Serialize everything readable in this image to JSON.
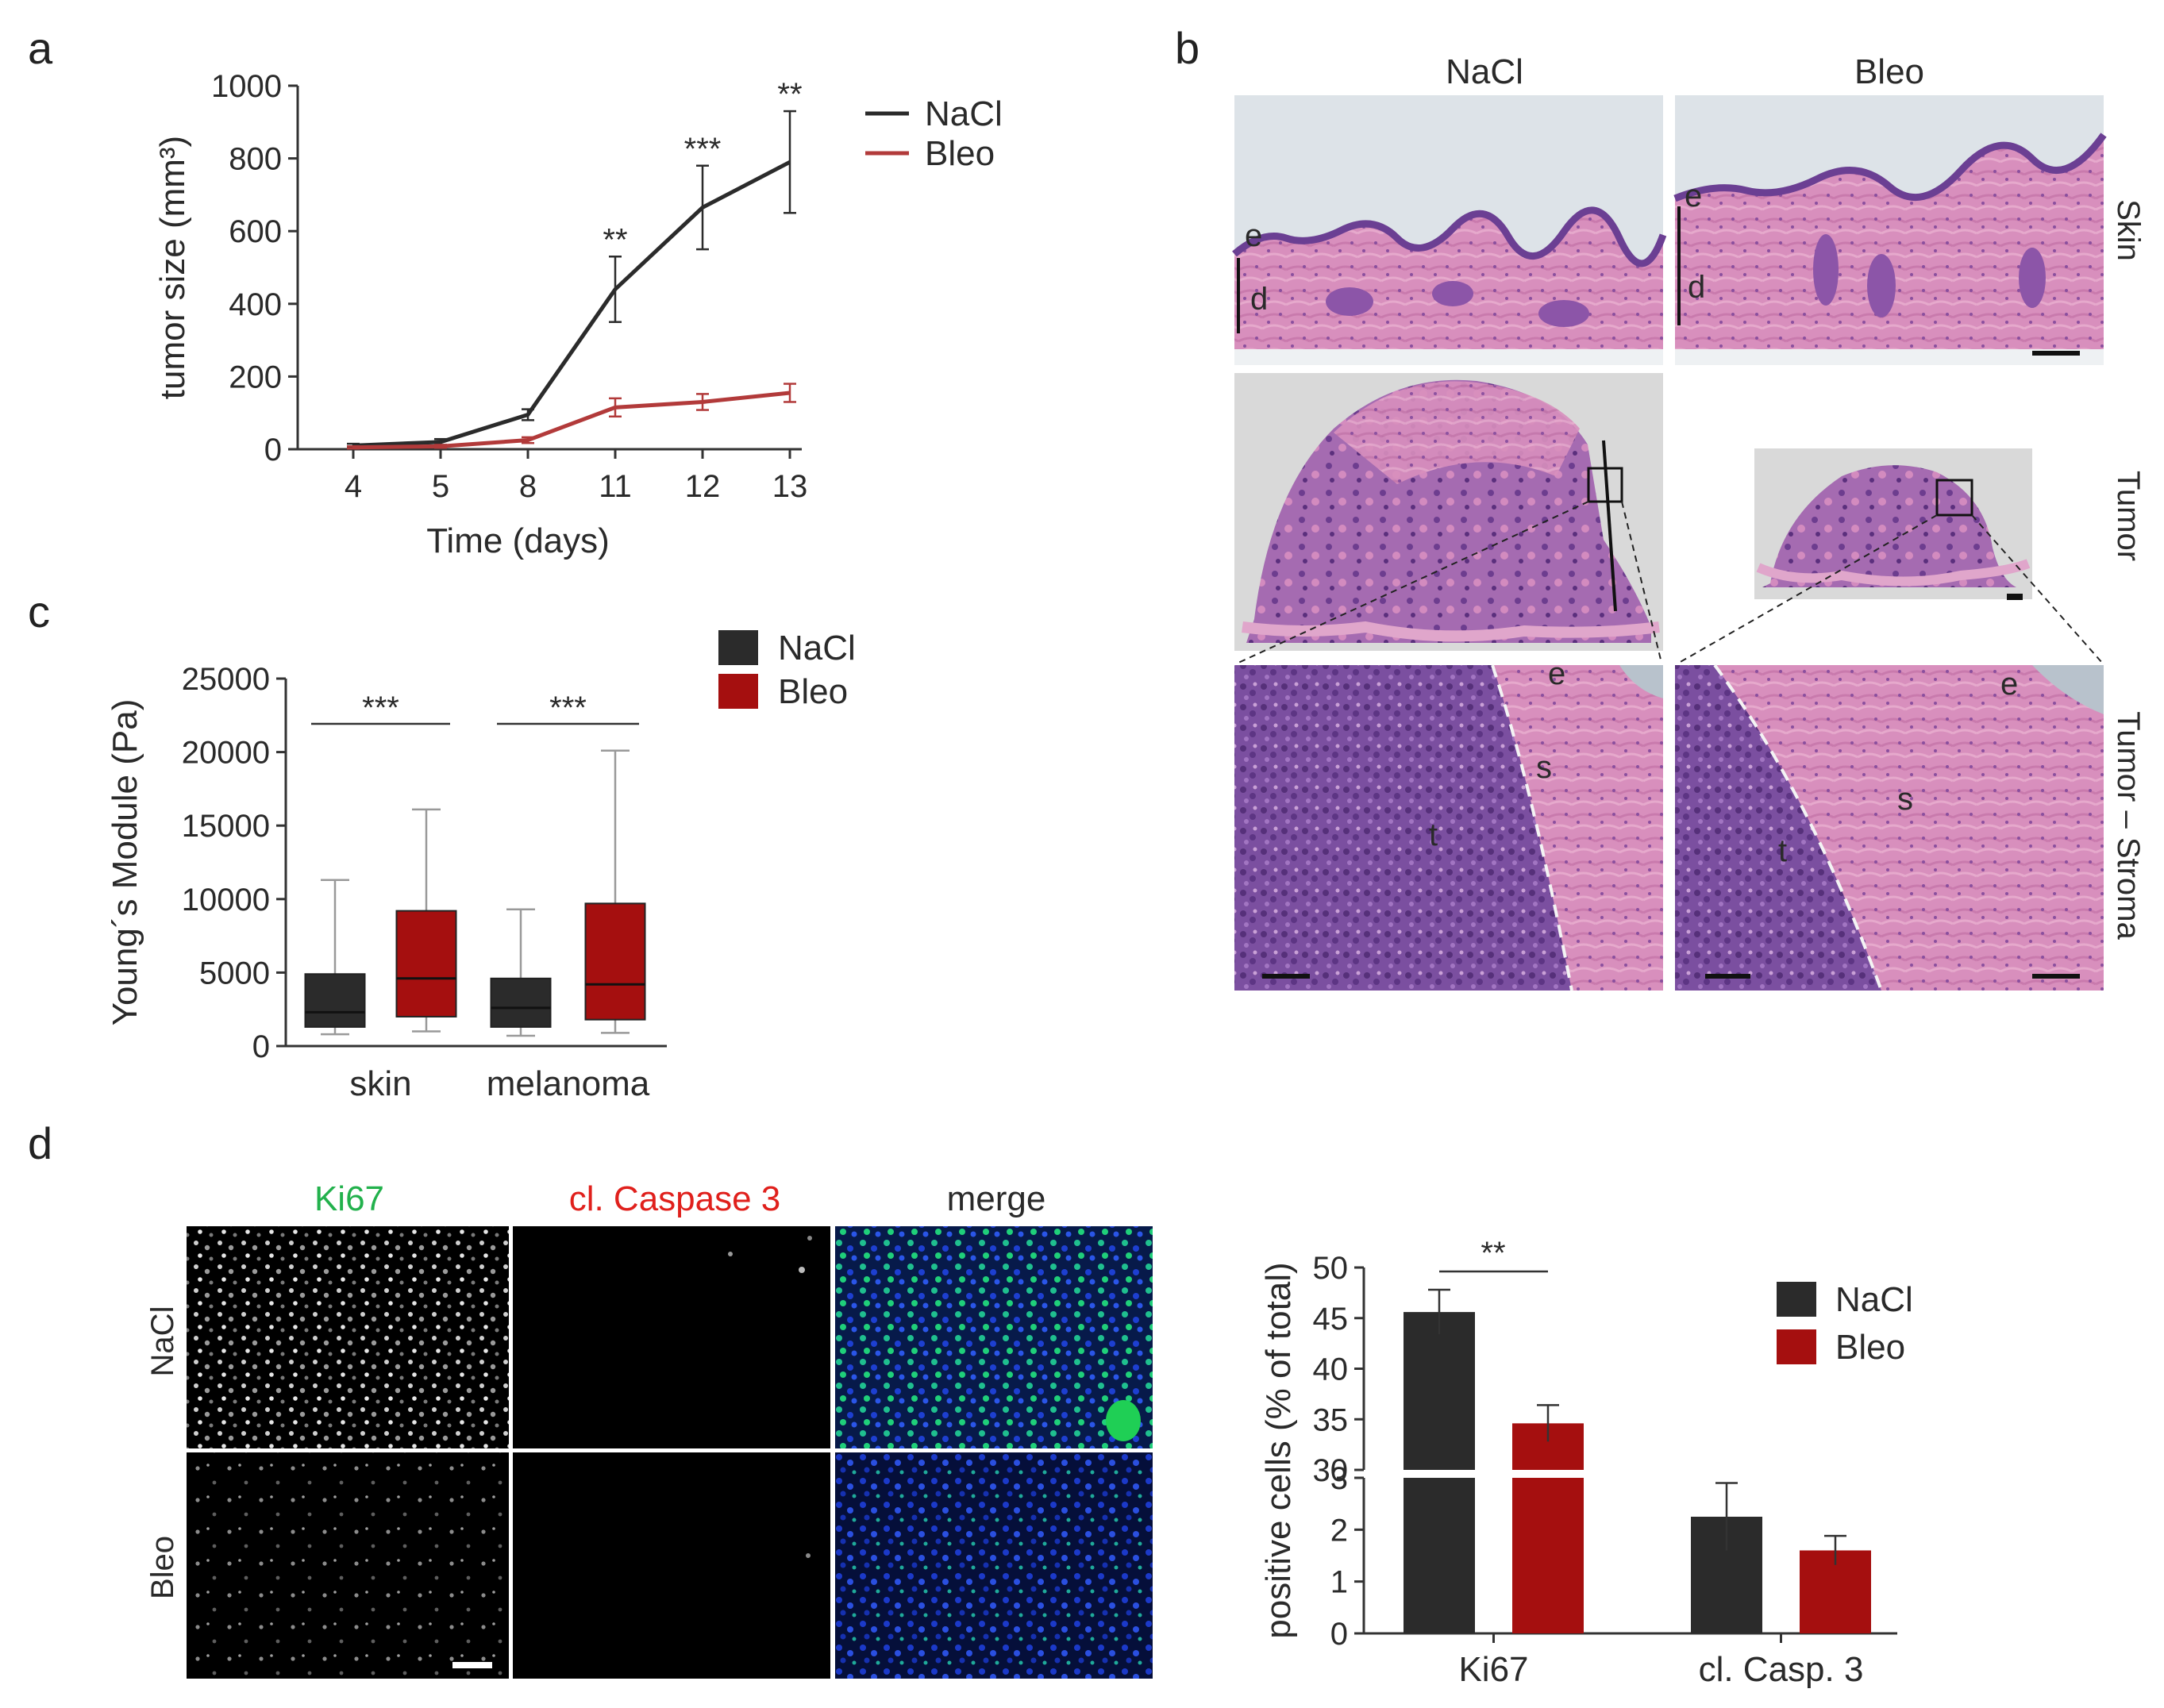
{
  "panels": {
    "a": "a",
    "b": "b",
    "c": "c",
    "d": "d"
  },
  "colors": {
    "nacl": "#2b2b2b",
    "bleo_line": "#b23a3a",
    "bleo_bar": "#a50f0f",
    "he_pink": "#d98ab8",
    "he_purple": "#6b3f93",
    "stain_bg": "#d9dfe4"
  },
  "panel_b": {
    "col_labels": [
      "NaCl",
      "Bleo"
    ],
    "row_labels": [
      "Skin",
      "Tumor",
      "Tumor – Stroma"
    ],
    "annotations": {
      "e": "e",
      "d": "d",
      "s": "s",
      "t": "t"
    }
  },
  "panel_d_images": {
    "col_labels": [
      "Ki67",
      "cl. Caspase 3",
      "merge"
    ],
    "col_label_colors": [
      "#22b14c",
      "#e0201c",
      "#222222"
    ],
    "row_labels": [
      "NaCl",
      "Bleo"
    ]
  },
  "chart_data": [
    {
      "id": "a",
      "type": "line",
      "xlabel": "Time (days)",
      "ylabel": "tumor size (mm³)",
      "categories": [
        "4",
        "5",
        "8",
        "11",
        "12",
        "13"
      ],
      "ylim": [
        0,
        1000
      ],
      "yticks": [
        "0",
        "200",
        "400",
        "600",
        "800",
        "1000"
      ],
      "series": [
        {
          "name": "NaCl",
          "color": "#2b2b2b",
          "values": [
            10,
            20,
            95,
            440,
            665,
            790
          ],
          "errors": [
            5,
            8,
            15,
            90,
            115,
            140
          ]
        },
        {
          "name": "Bleo",
          "color": "#b23a3a",
          "values": [
            5,
            8,
            25,
            115,
            130,
            155
          ],
          "errors": [
            3,
            4,
            8,
            25,
            22,
            25
          ]
        }
      ],
      "significance": [
        {
          "x": "11",
          "label": "**"
        },
        {
          "x": "12",
          "label": "***"
        },
        {
          "x": "13",
          "label": "**"
        }
      ],
      "legend": "top-right",
      "grid": false
    },
    {
      "id": "c",
      "type": "box",
      "ylabel": "Young´s Module (Pa)",
      "categories": [
        "skin",
        "melanoma"
      ],
      "ylim": [
        0,
        25000
      ],
      "yticks": [
        "0",
        "5000",
        "10000",
        "15000",
        "20000",
        "25000"
      ],
      "series": [
        {
          "name": "NaCl",
          "color": "#2b2b2b",
          "boxes": [
            {
              "min": 800,
              "q1": 1300,
              "median": 2300,
              "q3": 4900,
              "max": 11300
            },
            {
              "min": 700,
              "q1": 1300,
              "median": 2600,
              "q3": 4600,
              "max": 9300
            }
          ]
        },
        {
          "name": "Bleo",
          "color": "#a50f0f",
          "boxes": [
            {
              "min": 1000,
              "q1": 2000,
              "median": 4600,
              "q3": 9200,
              "max": 16100
            },
            {
              "min": 900,
              "q1": 1800,
              "median": 4200,
              "q3": 9700,
              "max": 20100
            }
          ]
        }
      ],
      "significance": [
        {
          "category": "skin",
          "label": "***"
        },
        {
          "category": "melanoma",
          "label": "***"
        }
      ],
      "legend": "top-right",
      "grid": false
    },
    {
      "id": "d",
      "type": "bar",
      "ylabel": "positive cells (% of total)",
      "categories": [
        "Ki67",
        "cl. Casp. 3"
      ],
      "axis_break": {
        "lower": [
          0,
          3
        ],
        "upper": [
          30,
          50
        ]
      },
      "yticks_lower": [
        "0",
        "1",
        "2",
        "3"
      ],
      "yticks_upper": [
        "30",
        "35",
        "40",
        "45",
        "50"
      ],
      "series": [
        {
          "name": "NaCl",
          "color": "#2b2b2b",
          "values": [
            45.6,
            2.25
          ],
          "errors": [
            2.2,
            0.65
          ]
        },
        {
          "name": "Bleo",
          "color": "#a50f0f",
          "values": [
            34.6,
            1.6
          ],
          "errors": [
            1.8,
            0.28
          ]
        }
      ],
      "significance": [
        {
          "category": "Ki67",
          "label": "**"
        }
      ],
      "legend": "top-right",
      "grid": false
    }
  ]
}
